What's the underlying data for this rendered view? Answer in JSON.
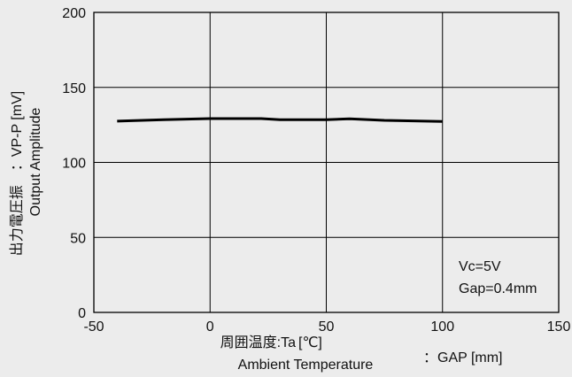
{
  "chart_data": {
    "type": "line",
    "title": "",
    "xlim": [
      -50,
      150
    ],
    "ylim": [
      0,
      200
    ],
    "x_ticks": [
      "-50",
      "0",
      "50",
      "100",
      "150"
    ],
    "x_tick_values": [
      -50,
      0,
      50,
      100,
      150
    ],
    "y_ticks": [
      "0",
      "50",
      "100",
      "150",
      "200"
    ],
    "y_tick_values": [
      0,
      50,
      100,
      150,
      200
    ],
    "grid": true,
    "xlabel_ja": "周囲温度:Ta",
    "xlabel_unit": "[℃]",
    "xlabel_en": "Ambient Temperature",
    "extra_unit_label": "：GAP [mm]",
    "ylabel_ja": "出力電圧振　：VP-P [mV]",
    "ylabel_en": "Output Amplitude",
    "annotations": [
      "Vc=5V",
      "Gap=0.4mm"
    ],
    "series": [
      {
        "color": "#000000",
        "x": [
          -40,
          -20,
          0,
          22,
          30,
          40,
          50,
          60,
          75,
          100
        ],
        "y": [
          127.5,
          128.5,
          129.2,
          129.2,
          128.5,
          128.5,
          128.5,
          129,
          128,
          127.3
        ]
      }
    ]
  }
}
